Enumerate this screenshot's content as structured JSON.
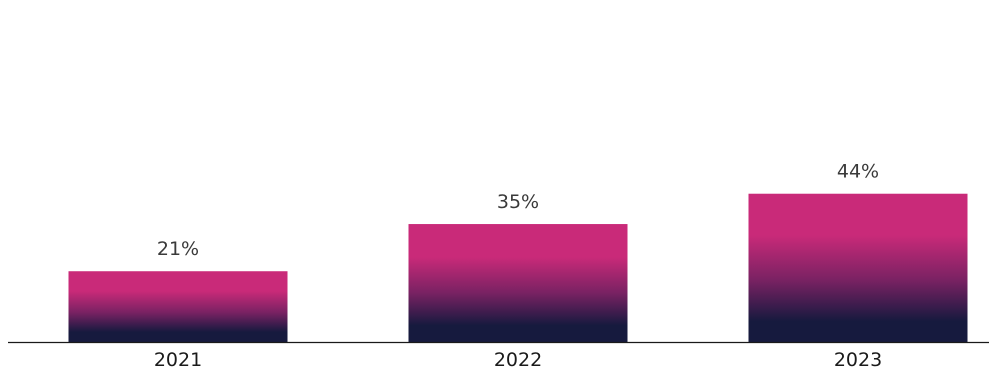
{
  "chart_data": {
    "type": "bar",
    "categories": [
      "2021",
      "2022",
      "2023"
    ],
    "values": [
      21,
      35,
      44
    ],
    "data_labels": [
      "21%",
      "35%",
      "44%"
    ],
    "title": "",
    "xlabel": "",
    "ylabel": "",
    "ylim": [
      0,
      50
    ],
    "grid": false,
    "legend": "none",
    "colors": {
      "bar_top": "#c92a79",
      "bar_bottom": "#161a3e",
      "axis": "#1a1a1a",
      "label_text": "#3a3a3a"
    }
  }
}
